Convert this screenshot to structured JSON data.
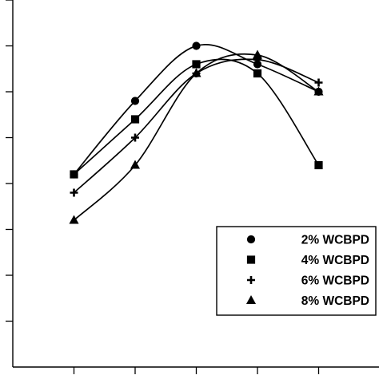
{
  "chart_data": {
    "type": "line",
    "title": "",
    "xlabel": "",
    "ylabel": "",
    "x": [
      1,
      2,
      3,
      4,
      5
    ],
    "xlim": [
      0,
      6
    ],
    "ylim": [
      0,
      8
    ],
    "grid": false,
    "legend_position": "bottom-right",
    "series": [
      {
        "name": "2% WCBPD",
        "marker": "circle",
        "values": [
          4.2,
          5.8,
          7.0,
          6.6,
          6.0
        ]
      },
      {
        "name": "4% WCBPD",
        "marker": "square",
        "values": [
          4.2,
          5.4,
          6.6,
          6.4,
          4.4
        ]
      },
      {
        "name": "6% WCBPD",
        "marker": "plus",
        "values": [
          3.8,
          5.0,
          6.4,
          6.7,
          6.2
        ]
      },
      {
        "name": "8% WCBPD",
        "marker": "triangle",
        "values": [
          3.2,
          4.4,
          6.4,
          6.8,
          6.0
        ]
      }
    ]
  }
}
